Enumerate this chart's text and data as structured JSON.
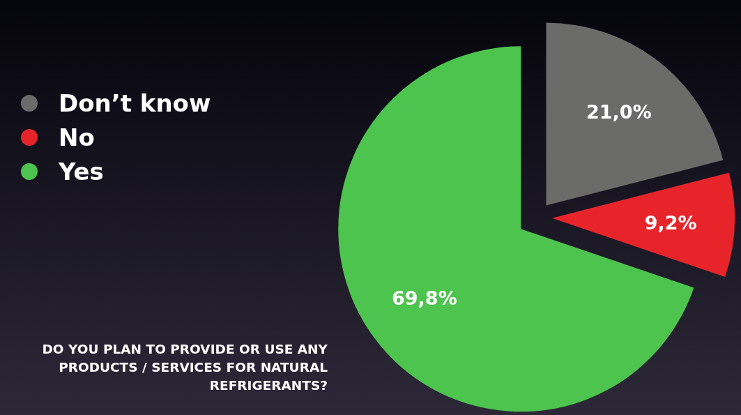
{
  "chart_data": {
    "type": "pie",
    "title": "DO YOU PLAN TO PROVIDE OR USE ANY PRODUCTS / SERVICES FOR NATURAL REFRIGERANTS?",
    "categories": [
      "Don’t know",
      "No",
      "Yes"
    ],
    "values": [
      21.0,
      9.2,
      69.8
    ],
    "colors": [
      "#6b6b6a",
      "#e8242b",
      "#4cc44e"
    ],
    "value_labels": [
      "21,0%",
      "9,2%",
      "69,8%"
    ],
    "legend": "left"
  }
}
